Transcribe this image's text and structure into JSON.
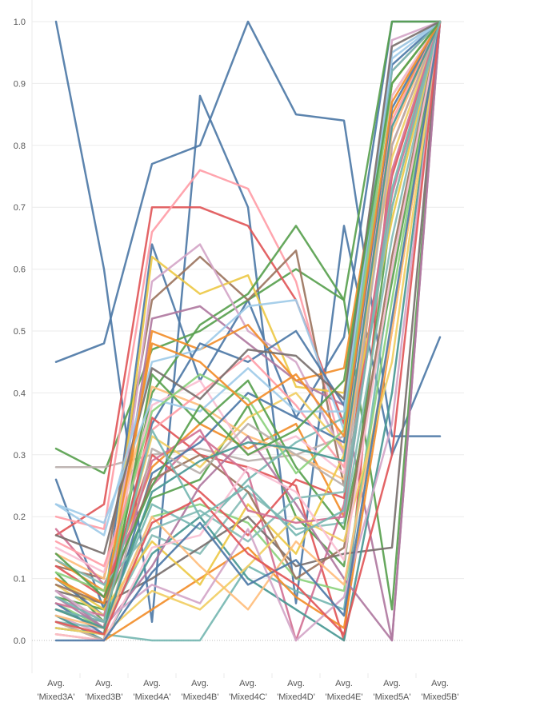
{
  "chart_data": {
    "type": "line",
    "categories": [
      [
        "Avg.",
        "'Mixed3A'"
      ],
      [
        "Avg.",
        "'Mixed3B'"
      ],
      [
        "Avg.",
        "'Mixed4A'"
      ],
      [
        "Avg.",
        "'Mixed4B'"
      ],
      [
        "Avg.",
        "'Mixed4C'"
      ],
      [
        "Avg.",
        "'Mixed4D'"
      ],
      [
        "Avg.",
        "'Mixed4E'"
      ],
      [
        "Avg.",
        "'Mixed5A'"
      ],
      [
        "Avg.",
        "'Mixed5B'"
      ]
    ],
    "ylim": [
      -0.05,
      1.0
    ],
    "yticks": [
      "0.0",
      "0.1",
      "0.2",
      "0.3",
      "0.4",
      "0.5",
      "0.6",
      "0.7",
      "0.8",
      "0.9",
      "1.0"
    ],
    "grid": true,
    "legend": "none",
    "palette": [
      "#4e79a7",
      "#f28e2b",
      "#e15759",
      "#76b7b2",
      "#59a14f",
      "#edc948",
      "#b07aa1",
      "#ff9da7",
      "#9c755f",
      "#bab0ac",
      "#a0cbe8",
      "#ffbe7d",
      "#8cd17d",
      "#f1ce63",
      "#86bcb6",
      "#d37295",
      "#fabfd2",
      "#79706e",
      "#d4a6c8",
      "#499894"
    ],
    "series": [
      {
        "color": "#4e79a7",
        "values": [
          1.0,
          0.6,
          0.03,
          0.88,
          0.7,
          0.06,
          0.67,
          0.3,
          0.49
        ]
      },
      {
        "color": "#4e79a7",
        "values": [
          0.45,
          0.48,
          0.77,
          0.8,
          1.0,
          0.85,
          0.84,
          0.33,
          0.33
        ]
      },
      {
        "color": "#4e79a7",
        "values": [
          0.26,
          0.05,
          0.64,
          0.42,
          0.55,
          0.36,
          0.49,
          1.0,
          1.0
        ]
      },
      {
        "color": "#59a14f",
        "values": [
          0.31,
          0.27,
          0.47,
          0.5,
          0.55,
          0.6,
          0.55,
          1.0,
          1.0
        ]
      },
      {
        "color": "#bab0ac",
        "values": [
          0.28,
          0.28,
          0.3,
          0.31,
          0.29,
          0.3,
          0.33,
          0.95,
          1.0
        ]
      },
      {
        "color": "#e15759",
        "values": [
          0.17,
          0.22,
          0.7,
          0.7,
          0.67,
          0.55,
          0.35,
          0.9,
          1.0
        ]
      },
      {
        "color": "#ff9da7",
        "values": [
          0.2,
          0.18,
          0.66,
          0.76,
          0.73,
          0.58,
          0.3,
          0.92,
          1.0
        ]
      },
      {
        "color": "#9c755f",
        "values": [
          0.12,
          0.1,
          0.55,
          0.62,
          0.55,
          0.63,
          0.25,
          0.88,
          1.0
        ]
      },
      {
        "color": "#edc948",
        "values": [
          0.05,
          0.02,
          0.62,
          0.56,
          0.59,
          0.41,
          0.4,
          0.9,
          1.0
        ]
      },
      {
        "color": "#59a14f",
        "values": [
          0.11,
          0.03,
          0.4,
          0.51,
          0.56,
          0.67,
          0.55,
          0.05,
          1.0
        ]
      },
      {
        "color": "#b07aa1",
        "values": [
          0.08,
          0.02,
          0.52,
          0.54,
          0.48,
          0.42,
          0.38,
          0.0,
          1.0
        ]
      },
      {
        "color": "#d4a6c8",
        "values": [
          0.04,
          0.01,
          0.58,
          0.64,
          0.5,
          0.45,
          0.3,
          0.97,
          1.0
        ]
      },
      {
        "color": "#f28e2b",
        "values": [
          0.03,
          0.0,
          0.5,
          0.47,
          0.51,
          0.42,
          0.44,
          0.9,
          1.0
        ]
      },
      {
        "color": "#a0cbe8",
        "values": [
          0.22,
          0.17,
          0.45,
          0.47,
          0.54,
          0.55,
          0.34,
          0.95,
          1.0
        ]
      },
      {
        "color": "#4e79a7",
        "values": [
          0.1,
          0.04,
          0.35,
          0.48,
          0.45,
          0.5,
          0.38,
          0.93,
          1.0
        ]
      },
      {
        "color": "#f28e2b",
        "values": [
          0.13,
          0.08,
          0.28,
          0.35,
          0.31,
          0.35,
          0.2,
          0.85,
          1.0
        ]
      },
      {
        "color": "#e15759",
        "values": [
          0.05,
          0.03,
          0.36,
          0.3,
          0.28,
          0.25,
          0.0,
          0.8,
          1.0
        ]
      },
      {
        "color": "#76b7b2",
        "values": [
          0.02,
          0.01,
          0.0,
          0.0,
          0.12,
          0.08,
          0.05,
          0.6,
          1.0
        ]
      },
      {
        "color": "#59a14f",
        "values": [
          0.07,
          0.05,
          0.23,
          0.26,
          0.38,
          0.2,
          0.12,
          0.7,
          1.0
        ]
      },
      {
        "color": "#ffbe7d",
        "values": [
          0.14,
          0.1,
          0.41,
          0.38,
          0.33,
          0.3,
          0.26,
          0.82,
          1.0
        ]
      },
      {
        "color": "#8cd17d",
        "values": [
          0.06,
          0.02,
          0.2,
          0.22,
          0.19,
          0.1,
          0.08,
          0.55,
          1.0
        ]
      },
      {
        "color": "#f1ce63",
        "values": [
          0.09,
          0.04,
          0.33,
          0.28,
          0.36,
          0.4,
          0.31,
          0.78,
          1.0
        ]
      },
      {
        "color": "#86bcb6",
        "values": [
          0.03,
          0.02,
          0.17,
          0.14,
          0.24,
          0.18,
          0.19,
          0.65,
          1.0
        ]
      },
      {
        "color": "#d37295",
        "values": [
          0.18,
          0.09,
          0.25,
          0.33,
          0.27,
          0.0,
          0.22,
          0.72,
          1.0
        ]
      },
      {
        "color": "#fabfd2",
        "values": [
          0.15,
          0.11,
          0.38,
          0.42,
          0.3,
          0.33,
          0.27,
          0.88,
          1.0
        ]
      },
      {
        "color": "#79706e",
        "values": [
          0.08,
          0.06,
          0.1,
          0.15,
          0.2,
          0.12,
          0.14,
          0.15,
          1.0
        ]
      },
      {
        "color": "#499894",
        "values": [
          0.04,
          0.0,
          0.14,
          0.2,
          0.1,
          0.05,
          0.0,
          0.4,
          1.0
        ]
      },
      {
        "color": "#4e79a7",
        "values": [
          0.06,
          0.01,
          0.27,
          0.32,
          0.4,
          0.36,
          0.32,
          0.86,
          1.0
        ]
      },
      {
        "color": "#f28e2b",
        "values": [
          0.01,
          0.0,
          0.05,
          0.1,
          0.15,
          0.07,
          0.02,
          0.5,
          1.0
        ]
      },
      {
        "color": "#e15759",
        "values": [
          0.12,
          0.07,
          0.3,
          0.24,
          0.17,
          0.26,
          0.23,
          0.75,
          1.0
        ]
      },
      {
        "color": "#76b7b2",
        "values": [
          0.05,
          0.03,
          0.22,
          0.18,
          0.26,
          0.32,
          0.36,
          0.92,
          1.0
        ]
      },
      {
        "color": "#59a14f",
        "values": [
          0.02,
          0.01,
          0.43,
          0.35,
          0.42,
          0.28,
          0.18,
          0.58,
          1.0
        ]
      },
      {
        "color": "#edc948",
        "values": [
          0.1,
          0.05,
          0.16,
          0.09,
          0.22,
          0.14,
          0.3,
          0.68,
          1.0
        ]
      },
      {
        "color": "#b07aa1",
        "values": [
          0.07,
          0.02,
          0.12,
          0.25,
          0.33,
          0.22,
          0.1,
          0.0,
          1.0
        ]
      },
      {
        "color": "#ff9da7",
        "values": [
          0.16,
          0.12,
          0.34,
          0.4,
          0.46,
          0.38,
          0.28,
          0.84,
          1.0
        ]
      },
      {
        "color": "#9c755f",
        "values": [
          0.09,
          0.06,
          0.26,
          0.3,
          0.24,
          0.1,
          0.15,
          0.62,
          1.0
        ]
      },
      {
        "color": "#bab0ac",
        "values": [
          0.03,
          0.0,
          0.31,
          0.27,
          0.35,
          0.3,
          0.25,
          0.8,
          1.0
        ]
      },
      {
        "color": "#a0cbe8",
        "values": [
          0.22,
          0.19,
          0.39,
          0.37,
          0.44,
          0.37,
          0.37,
          0.94,
          1.0
        ]
      },
      {
        "color": "#ffbe7d",
        "values": [
          0.04,
          0.02,
          0.2,
          0.12,
          0.05,
          0.16,
          0.09,
          0.5,
          1.0
        ]
      },
      {
        "color": "#8cd17d",
        "values": [
          0.11,
          0.08,
          0.37,
          0.43,
          0.39,
          0.27,
          0.34,
          0.9,
          1.0
        ]
      },
      {
        "color": "#f1ce63",
        "values": [
          0.02,
          0.01,
          0.08,
          0.05,
          0.12,
          0.2,
          0.16,
          0.45,
          1.0
        ]
      },
      {
        "color": "#86bcb6",
        "values": [
          0.13,
          0.09,
          0.18,
          0.21,
          0.16,
          0.23,
          0.24,
          0.7,
          1.0
        ]
      },
      {
        "color": "#d37295",
        "values": [
          0.06,
          0.04,
          0.29,
          0.34,
          0.21,
          0.19,
          0.2,
          0.76,
          1.0
        ]
      },
      {
        "color": "#fabfd2",
        "values": [
          0.01,
          0.0,
          0.15,
          0.17,
          0.28,
          0.24,
          0.13,
          0.6,
          1.0
        ]
      },
      {
        "color": "#79706e",
        "values": [
          0.17,
          0.14,
          0.44,
          0.39,
          0.47,
          0.46,
          0.39,
          0.96,
          1.0
        ]
      },
      {
        "color": "#d4a6c8",
        "values": [
          0.08,
          0.03,
          0.09,
          0.06,
          0.18,
          0.0,
          0.07,
          0.35,
          1.0
        ]
      },
      {
        "color": "#499894",
        "values": [
          0.05,
          0.02,
          0.24,
          0.29,
          0.32,
          0.31,
          0.29,
          0.83,
          1.0
        ]
      },
      {
        "color": "#4e79a7",
        "values": [
          0.0,
          0.0,
          0.11,
          0.19,
          0.09,
          0.13,
          0.04,
          0.52,
          1.0
        ]
      },
      {
        "color": "#f28e2b",
        "values": [
          0.1,
          0.06,
          0.48,
          0.45,
          0.38,
          0.43,
          0.33,
          0.87,
          1.0
        ]
      },
      {
        "color": "#e15759",
        "values": [
          0.03,
          0.01,
          0.19,
          0.23,
          0.14,
          0.09,
          0.01,
          0.3,
          1.0
        ]
      },
      {
        "color": "#59a14f",
        "values": [
          0.14,
          0.07,
          0.25,
          0.38,
          0.3,
          0.34,
          0.42,
          0.9,
          1.0
        ]
      },
      {
        "color": "#76b7b2",
        "values": [
          0.07,
          0.03,
          0.34,
          0.2,
          0.25,
          0.17,
          0.21,
          0.73,
          1.0
        ]
      }
    ]
  }
}
